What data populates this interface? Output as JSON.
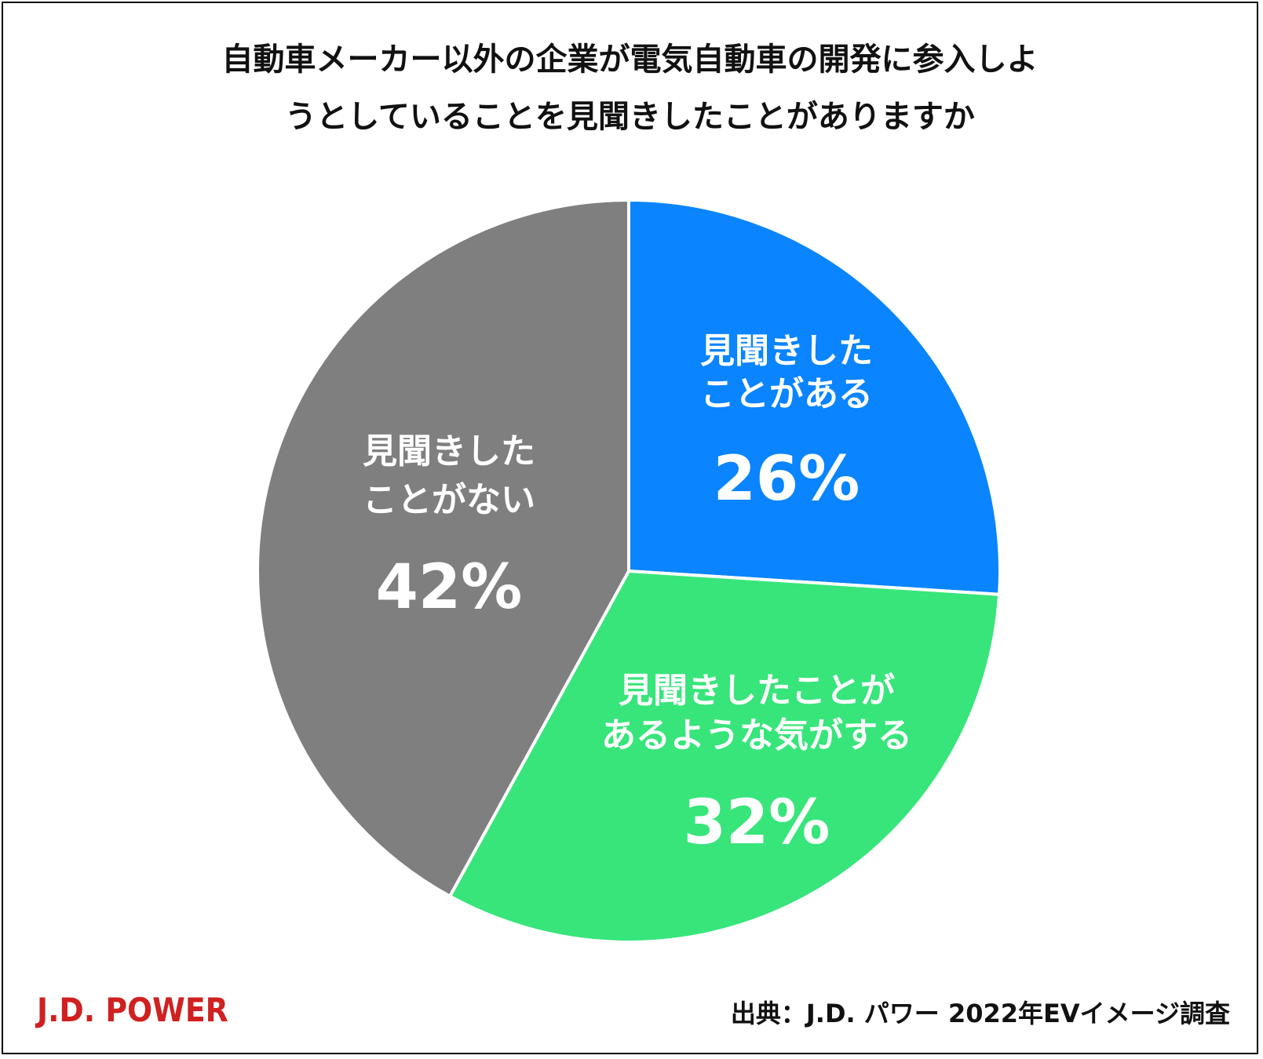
{
  "title_lines": [
    "自動車メーカー以外の企業が電気自動車の開発に参入しよ",
    "うとしていることを見聞きしたことがありますか"
  ],
  "chart_data": {
    "type": "pie",
    "title": "自動車メーカー以外の企業が電気自動車の開発に参入しようとしていることを見聞きしたことがありますか",
    "slices": [
      {
        "label_lines": [
          "見聞きした",
          "ことがある"
        ],
        "value": 26,
        "value_label": "26%",
        "color": "#0a84ff"
      },
      {
        "label_lines": [
          "見聞きしたことが",
          "あるような気がする"
        ],
        "value": 32,
        "value_label": "32%",
        "color": "#37e57a"
      },
      {
        "label_lines": [
          "見聞きした",
          "ことがない"
        ],
        "value": 42,
        "value_label": "42%",
        "color": "#7f7f7f"
      }
    ],
    "start": "12 o'clock",
    "direction": "clockwise"
  },
  "logo": "J.D. POWER",
  "source": "出典：J.D. パワー 2022年EVイメージ調査",
  "colors": {
    "logo": "#d02020",
    "border": "#000000"
  }
}
